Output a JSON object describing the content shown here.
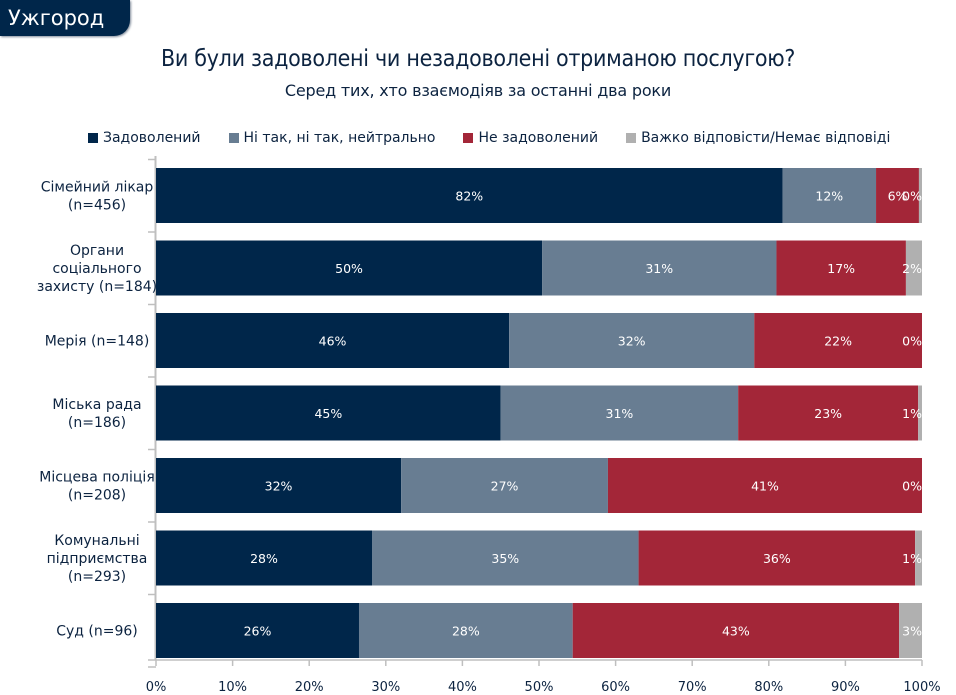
{
  "city_tab": "Ужгород",
  "chart_data": {
    "type": "bar",
    "orientation": "horizontal",
    "stacked": true,
    "title": "Ви були задоволені чи незадоволені отриманою послугою?",
    "subtitle": "Серед тих, хто взаємодіяв за останні два роки",
    "xlabel": "",
    "ylabel": "",
    "xlim": [
      0,
      100
    ],
    "x_ticks": [
      "0%",
      "10%",
      "20%",
      "30%",
      "40%",
      "50%",
      "60%",
      "70%",
      "80%",
      "90%",
      "100%"
    ],
    "legend_position": "top",
    "categories": [
      [
        "Сімейний лікар",
        "(n=456)"
      ],
      [
        "Органи",
        "соціального",
        "захисту  (n=184)"
      ],
      [
        "Мерія (n=148)"
      ],
      [
        "Міська рада",
        "(n=186)"
      ],
      [
        "Місцева поліція",
        "(n=208)"
      ],
      [
        "Комунальні",
        "підприємства",
        "(n=293)"
      ],
      [
        "Суд (n=96)"
      ]
    ],
    "series": [
      {
        "name": "Задоволений",
        "color": "#00264a",
        "values": [
          81.8,
          50.4,
          46.1,
          45.0,
          32.0,
          28.2,
          26.5
        ],
        "labels": [
          "82%",
          "50%",
          "46%",
          "45%",
          "32%",
          "28%",
          "26%"
        ]
      },
      {
        "name": "Ні так, ні так, нейтрально",
        "color": "#687d92",
        "values": [
          12.2,
          30.6,
          32.0,
          31.0,
          27.0,
          34.8,
          27.9
        ],
        "labels": [
          "12%",
          "31%",
          "32%",
          "31%",
          "27%",
          "35%",
          "28%"
        ]
      },
      {
        "name": "Не задоволений",
        "color": "#a32638",
        "values": [
          5.6,
          16.9,
          21.9,
          23.5,
          41.0,
          36.1,
          42.6
        ],
        "labels": [
          "6%",
          "17%",
          "22%",
          "23%",
          "41%",
          "36%",
          "43%"
        ]
      },
      {
        "name": "Важко відповісти/Немає відповіді",
        "color": "#b0b0b0",
        "values": [
          0.4,
          2.1,
          0.0,
          0.5,
          0.0,
          0.9,
          3.0
        ],
        "labels": [
          "0%",
          "2%",
          "0%",
          "1%",
          "0%",
          "1%",
          "3%"
        ]
      }
    ]
  }
}
